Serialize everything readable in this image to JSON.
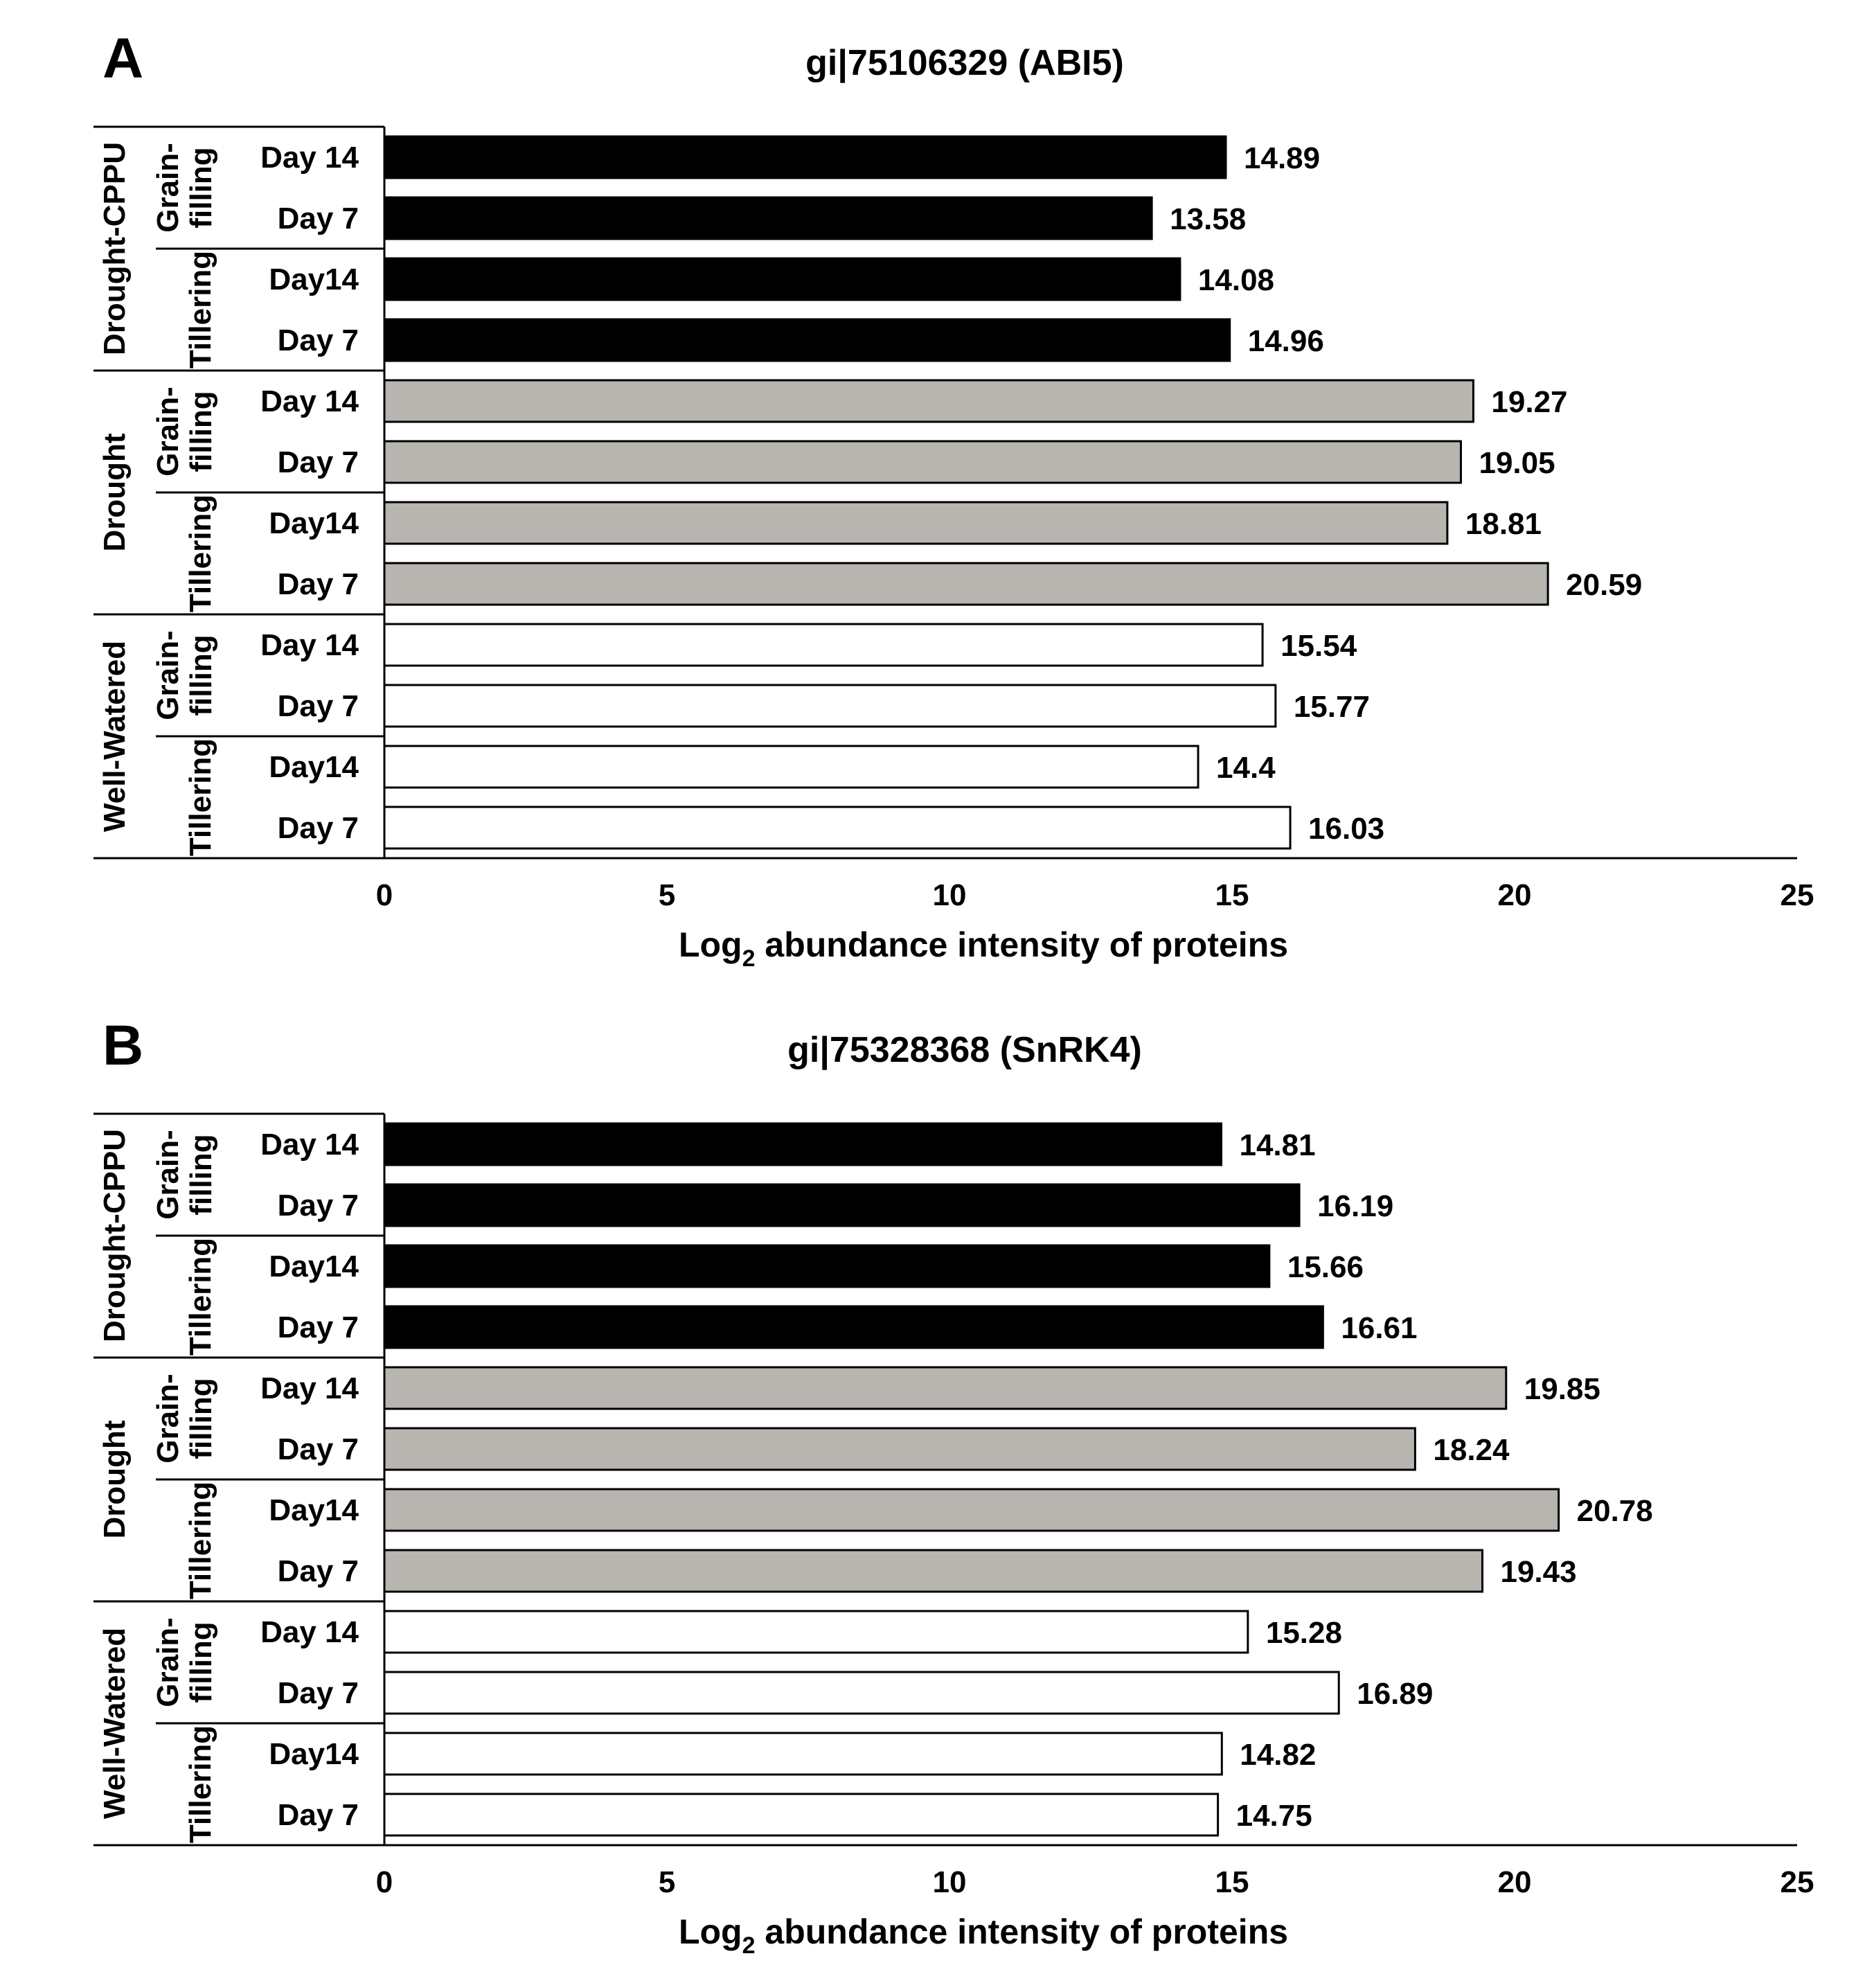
{
  "chart_data": [
    {
      "type": "bar",
      "orientation": "horizontal",
      "panel": "A",
      "title": "gi|75106329 (ABI5)",
      "xlabel": "Log",
      "xlabel_sub": "2",
      "xlabel_rest": " abundance intensity of proteins",
      "xlim": [
        0,
        25
      ],
      "xticks": [
        "0",
        "5",
        "10",
        "15",
        "20",
        "25"
      ],
      "grid": false,
      "groups": [
        {
          "name": "Drought-CPPU",
          "color": "#000000",
          "stages": [
            {
              "name": [
                "Grain-",
                "filling"
              ],
              "bars": [
                {
                  "label": "Day 14",
                  "value": 14.89
                },
                {
                  "label": "Day 7",
                  "value": 13.58
                }
              ]
            },
            {
              "name": [
                "Tillering"
              ],
              "bars": [
                {
                  "label": "Day14",
                  "value": 14.08
                },
                {
                  "label": "Day 7",
                  "value": 14.96
                }
              ]
            }
          ]
        },
        {
          "name": "Drought",
          "color": "#b8b4b0",
          "stages": [
            {
              "name": [
                "Grain-",
                "filling"
              ],
              "bars": [
                {
                  "label": "Day 14",
                  "value": 19.27
                },
                {
                  "label": "Day 7",
                  "value": 19.05
                }
              ]
            },
            {
              "name": [
                "Tillering"
              ],
              "bars": [
                {
                  "label": "Day14",
                  "value": 18.81
                },
                {
                  "label": "Day 7",
                  "value": 20.59
                }
              ]
            }
          ]
        },
        {
          "name": "Well-Watered",
          "color": "#ffffff",
          "stages": [
            {
              "name": [
                "Grain-",
                "filling"
              ],
              "bars": [
                {
                  "label": "Day 14",
                  "value": 15.54
                },
                {
                  "label": "Day 7",
                  "value": 15.77
                }
              ]
            },
            {
              "name": [
                "Tillering"
              ],
              "bars": [
                {
                  "label": "Day14",
                  "value": 14.4
                },
                {
                  "label": "Day 7",
                  "value": 16.03
                }
              ]
            }
          ]
        }
      ]
    },
    {
      "type": "bar",
      "orientation": "horizontal",
      "panel": "B",
      "title": "gi|75328368 (SnRK4)",
      "xlabel": "Log",
      "xlabel_sub": "2",
      "xlabel_rest": " abundance intensity of proteins",
      "xlim": [
        0,
        25
      ],
      "xticks": [
        "0",
        "5",
        "10",
        "15",
        "20",
        "25"
      ],
      "grid": false,
      "groups": [
        {
          "name": "Drought-CPPU",
          "color": "#000000",
          "stages": [
            {
              "name": [
                "Grain-",
                "filling"
              ],
              "bars": [
                {
                  "label": "Day 14",
                  "value": 14.81
                },
                {
                  "label": "Day 7",
                  "value": 16.19
                }
              ]
            },
            {
              "name": [
                "Tillering"
              ],
              "bars": [
                {
                  "label": "Day14",
                  "value": 15.66
                },
                {
                  "label": "Day 7",
                  "value": 16.61
                }
              ]
            }
          ]
        },
        {
          "name": "Drought",
          "color": "#b8b4b0",
          "stages": [
            {
              "name": [
                "Grain-",
                "filling"
              ],
              "bars": [
                {
                  "label": "Day 14",
                  "value": 19.85
                },
                {
                  "label": "Day 7",
                  "value": 18.24
                }
              ]
            },
            {
              "name": [
                "Tillering"
              ],
              "bars": [
                {
                  "label": "Day14",
                  "value": 20.78
                },
                {
                  "label": "Day 7",
                  "value": 19.43
                }
              ]
            }
          ]
        },
        {
          "name": "Well-Watered",
          "color": "#ffffff",
          "stages": [
            {
              "name": [
                "Grain-",
                "filling"
              ],
              "bars": [
                {
                  "label": "Day 14",
                  "value": 15.28
                },
                {
                  "label": "Day 7",
                  "value": 16.89
                }
              ]
            },
            {
              "name": [
                "Tillering"
              ],
              "bars": [
                {
                  "label": "Day14",
                  "value": 14.82
                },
                {
                  "label": "Day 7",
                  "value": 14.75
                }
              ]
            }
          ]
        }
      ]
    }
  ]
}
